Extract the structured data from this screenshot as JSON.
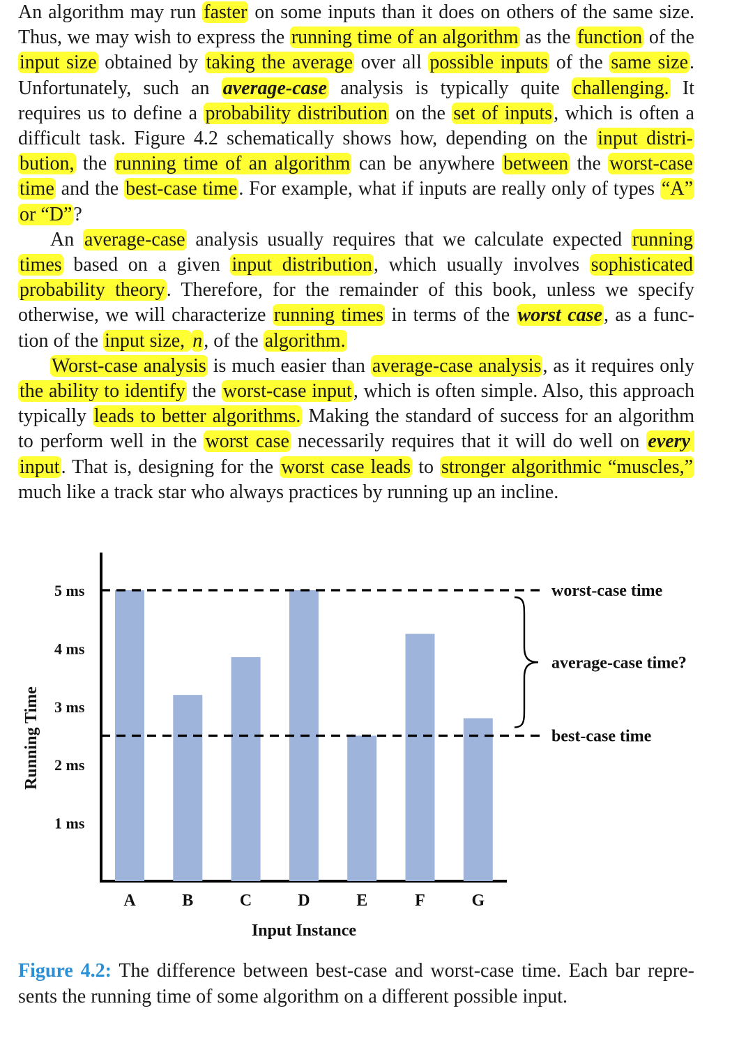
{
  "paragraphs": [
    {
      "indent": false,
      "segments": [
        {
          "t": "An algorithm may run "
        },
        {
          "t": "faster",
          "hl": true
        },
        {
          "t": " on some inputs than it does on others of the same size. Thus, we may wish to express the "
        },
        {
          "t": "running time of an algorithm",
          "hl": true
        },
        {
          "t": " as the "
        },
        {
          "t": "function",
          "hl": true
        },
        {
          "t": " of the "
        },
        {
          "t": "input size",
          "hl": true
        },
        {
          "t": " obtained by "
        },
        {
          "t": "taking the average",
          "hl": true
        },
        {
          "t": " over all "
        },
        {
          "t": "possible inputs",
          "hl": true
        },
        {
          "t": " of the "
        },
        {
          "t": "same size",
          "hl": true
        },
        {
          "t": ". Unfortunately, such an "
        },
        {
          "t": "average-case",
          "hl": true,
          "style": "bi"
        },
        {
          "t": " analysis is typically quite "
        },
        {
          "t": "challenging.",
          "hl": true
        },
        {
          "t": " It requires us to define a "
        },
        {
          "t": "probability distribution",
          "hl": true
        },
        {
          "t": " on the "
        },
        {
          "t": "set of inputs",
          "hl": true
        },
        {
          "t": ", which is often a difficult task. Figure 4.2 schematically shows how, depending on the "
        },
        {
          "t": "input distri­bution,",
          "hl": true
        },
        {
          "t": " the "
        },
        {
          "t": "running time of an algorithm",
          "hl": true
        },
        {
          "t": " can be anywhere "
        },
        {
          "t": "between",
          "hl": true
        },
        {
          "t": " the "
        },
        {
          "t": "worst-case time",
          "hl": true
        },
        {
          "t": " and the "
        },
        {
          "t": "best-case time",
          "hl": true
        },
        {
          "t": ". For example, what if inputs are really only of types "
        },
        {
          "t": "“A” or “D”",
          "hl": true
        },
        {
          "t": "?"
        }
      ]
    },
    {
      "indent": true,
      "segments": [
        {
          "t": "An "
        },
        {
          "t": "average-case",
          "hl": true
        },
        {
          "t": " analysis usually requires that we calculate expected "
        },
        {
          "t": "running times",
          "hl": true
        },
        {
          "t": " based on a given "
        },
        {
          "t": "input distribution",
          "hl": true
        },
        {
          "t": ", which usually involves "
        },
        {
          "t": "sophisticated probability theory",
          "hl": true
        },
        {
          "t": ". Therefore, for the remainder of this book, unless we specify otherwise, we will characterize "
        },
        {
          "t": "running times",
          "hl": true
        },
        {
          "t": " in terms of the "
        },
        {
          "t": "worst case",
          "hl": true,
          "style": "bi"
        },
        {
          "t": ", as a func­tion of the "
        },
        {
          "t": "input size, ",
          "hl": true
        },
        {
          "t": "n",
          "hl": true,
          "style": "it"
        },
        {
          "t": ", of the "
        },
        {
          "t": "algorithm.",
          "hl": true
        }
      ]
    },
    {
      "indent": true,
      "segments": [
        {
          "t": "Worst-case analysis",
          "hl": true
        },
        {
          "t": " is much easier than "
        },
        {
          "t": "average-case analysis",
          "hl": true
        },
        {
          "t": ", as it requires only "
        },
        {
          "t": "the ability to identify",
          "hl": true
        },
        {
          "t": " the "
        },
        {
          "t": "worst-case input",
          "hl": true
        },
        {
          "t": ", which is often simple. Also, this approach typically "
        },
        {
          "t": "leads to better algorithms.",
          "hl": true
        },
        {
          "t": " Making the standard of success for an algorithm to perform well in the "
        },
        {
          "t": "worst case",
          "hl": true
        },
        {
          "t": " necessarily requires that it will do well on "
        },
        {
          "t": "every",
          "hl": true,
          "style": "bi"
        },
        {
          "t": " input",
          "hl": true
        },
        {
          "t": ". That is, designing for the "
        },
        {
          "t": "worst case leads",
          "hl": true
        },
        {
          "t": " to "
        },
        {
          "t": "stronger algorithmic “muscles,”",
          "hl": true
        },
        {
          "t": " much like a track star who always practices by running up an incline."
        }
      ]
    }
  ],
  "highlight_color": "#ffff33",
  "bar_color": "#9fb4da",
  "chart_data": {
    "type": "bar",
    "categories": [
      "A",
      "B",
      "C",
      "D",
      "E",
      "F",
      "G"
    ],
    "values": [
      5.0,
      3.2,
      3.85,
      5.0,
      2.5,
      4.25,
      2.8
    ],
    "ylabel": "Running Time",
    "xlabel": "Input Instance",
    "ytick_labels": [
      "1 ms",
      "2 ms",
      "3 ms",
      "4 ms",
      "5 ms"
    ],
    "ytick_values": [
      1,
      2,
      3,
      4,
      5
    ],
    "ylim": [
      0,
      5.6
    ],
    "reference_lines": [
      {
        "label": "worst-case time",
        "value": 5.0,
        "style": "dashed"
      },
      {
        "label": "best-case time",
        "value": 2.5,
        "style": "dashed"
      }
    ],
    "brace_label": "average-case time?",
    "grid": false
  },
  "caption": {
    "label": "Figure 4.2:",
    "text": " The difference between best-case and worst-case time. Each bar repre­sents the running time of some algorithm on a different possible input."
  }
}
